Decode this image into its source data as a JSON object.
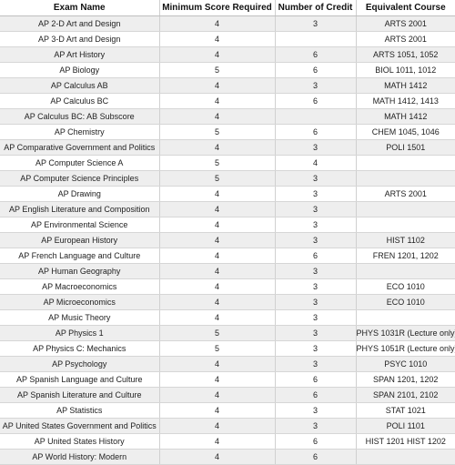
{
  "table": {
    "headers": [
      "Exam Name",
      "Minimum Score Required",
      "Number of Credit",
      "Equivalent Course"
    ],
    "rows": [
      [
        "AP 2-D Art and Design",
        "4",
        "3",
        "ARTS 2001"
      ],
      [
        "AP 3-D Art and Design",
        "4",
        "",
        "ARTS 2001"
      ],
      [
        "AP Art History",
        "4",
        "6",
        "ARTS 1051, 1052"
      ],
      [
        "AP Biology",
        "5",
        "6",
        "BIOL 1011, 1012"
      ],
      [
        "AP Calculus AB",
        "4",
        "3",
        "MATH 1412"
      ],
      [
        "AP Calculus BC",
        "4",
        "6",
        "MATH 1412, 1413"
      ],
      [
        "AP Calculus BC: AB Subscore",
        "4",
        "",
        "MATH 1412"
      ],
      [
        "AP Chemistry",
        "5",
        "6",
        "CHEM 1045, 1046"
      ],
      [
        "AP Comparative Government and Politics",
        "4",
        "3",
        "POLI 1501"
      ],
      [
        "AP Computer Science A",
        "5",
        "4",
        ""
      ],
      [
        "AP Computer Science Principles",
        "5",
        "3",
        ""
      ],
      [
        "AP Drawing",
        "4",
        "3",
        "ARTS 2001"
      ],
      [
        "AP English Literature and Composition",
        "4",
        "3",
        ""
      ],
      [
        "AP Environmental Science",
        "4",
        "3",
        ""
      ],
      [
        "AP European History",
        "4",
        "3",
        "HIST 1102"
      ],
      [
        "AP French Language and Culture",
        "4",
        "6",
        "FREN 1201, 1202"
      ],
      [
        "AP Human Geography",
        "4",
        "3",
        ""
      ],
      [
        "AP Macroeconomics",
        "4",
        "3",
        "ECO 1010"
      ],
      [
        "AP Microeconomics",
        "4",
        "3",
        "ECO 1010"
      ],
      [
        "AP Music Theory",
        "4",
        "3",
        ""
      ],
      [
        "AP Physics 1",
        "5",
        "3",
        "PHYS 1031R (Lecture only)"
      ],
      [
        "AP Physics C: Mechanics",
        "5",
        "3",
        "PHYS 1051R (Lecture only)"
      ],
      [
        "AP Psychology",
        "4",
        "3",
        "PSYC 1010"
      ],
      [
        "AP Spanish Language and Culture",
        "4",
        "6",
        "SPAN 1201, 1202"
      ],
      [
        "AP Spanish Literature and Culture",
        "4",
        "6",
        "SPAN 2101, 2102"
      ],
      [
        "AP Statistics",
        "4",
        "3",
        "STAT 1021"
      ],
      [
        "AP United States Government and Politics",
        "4",
        "3",
        "POLI 1101"
      ],
      [
        "AP United States History",
        "4",
        "6",
        "HIST 1201 HIST 1202"
      ],
      [
        "AP World History: Modern",
        "4",
        "6",
        ""
      ]
    ]
  }
}
